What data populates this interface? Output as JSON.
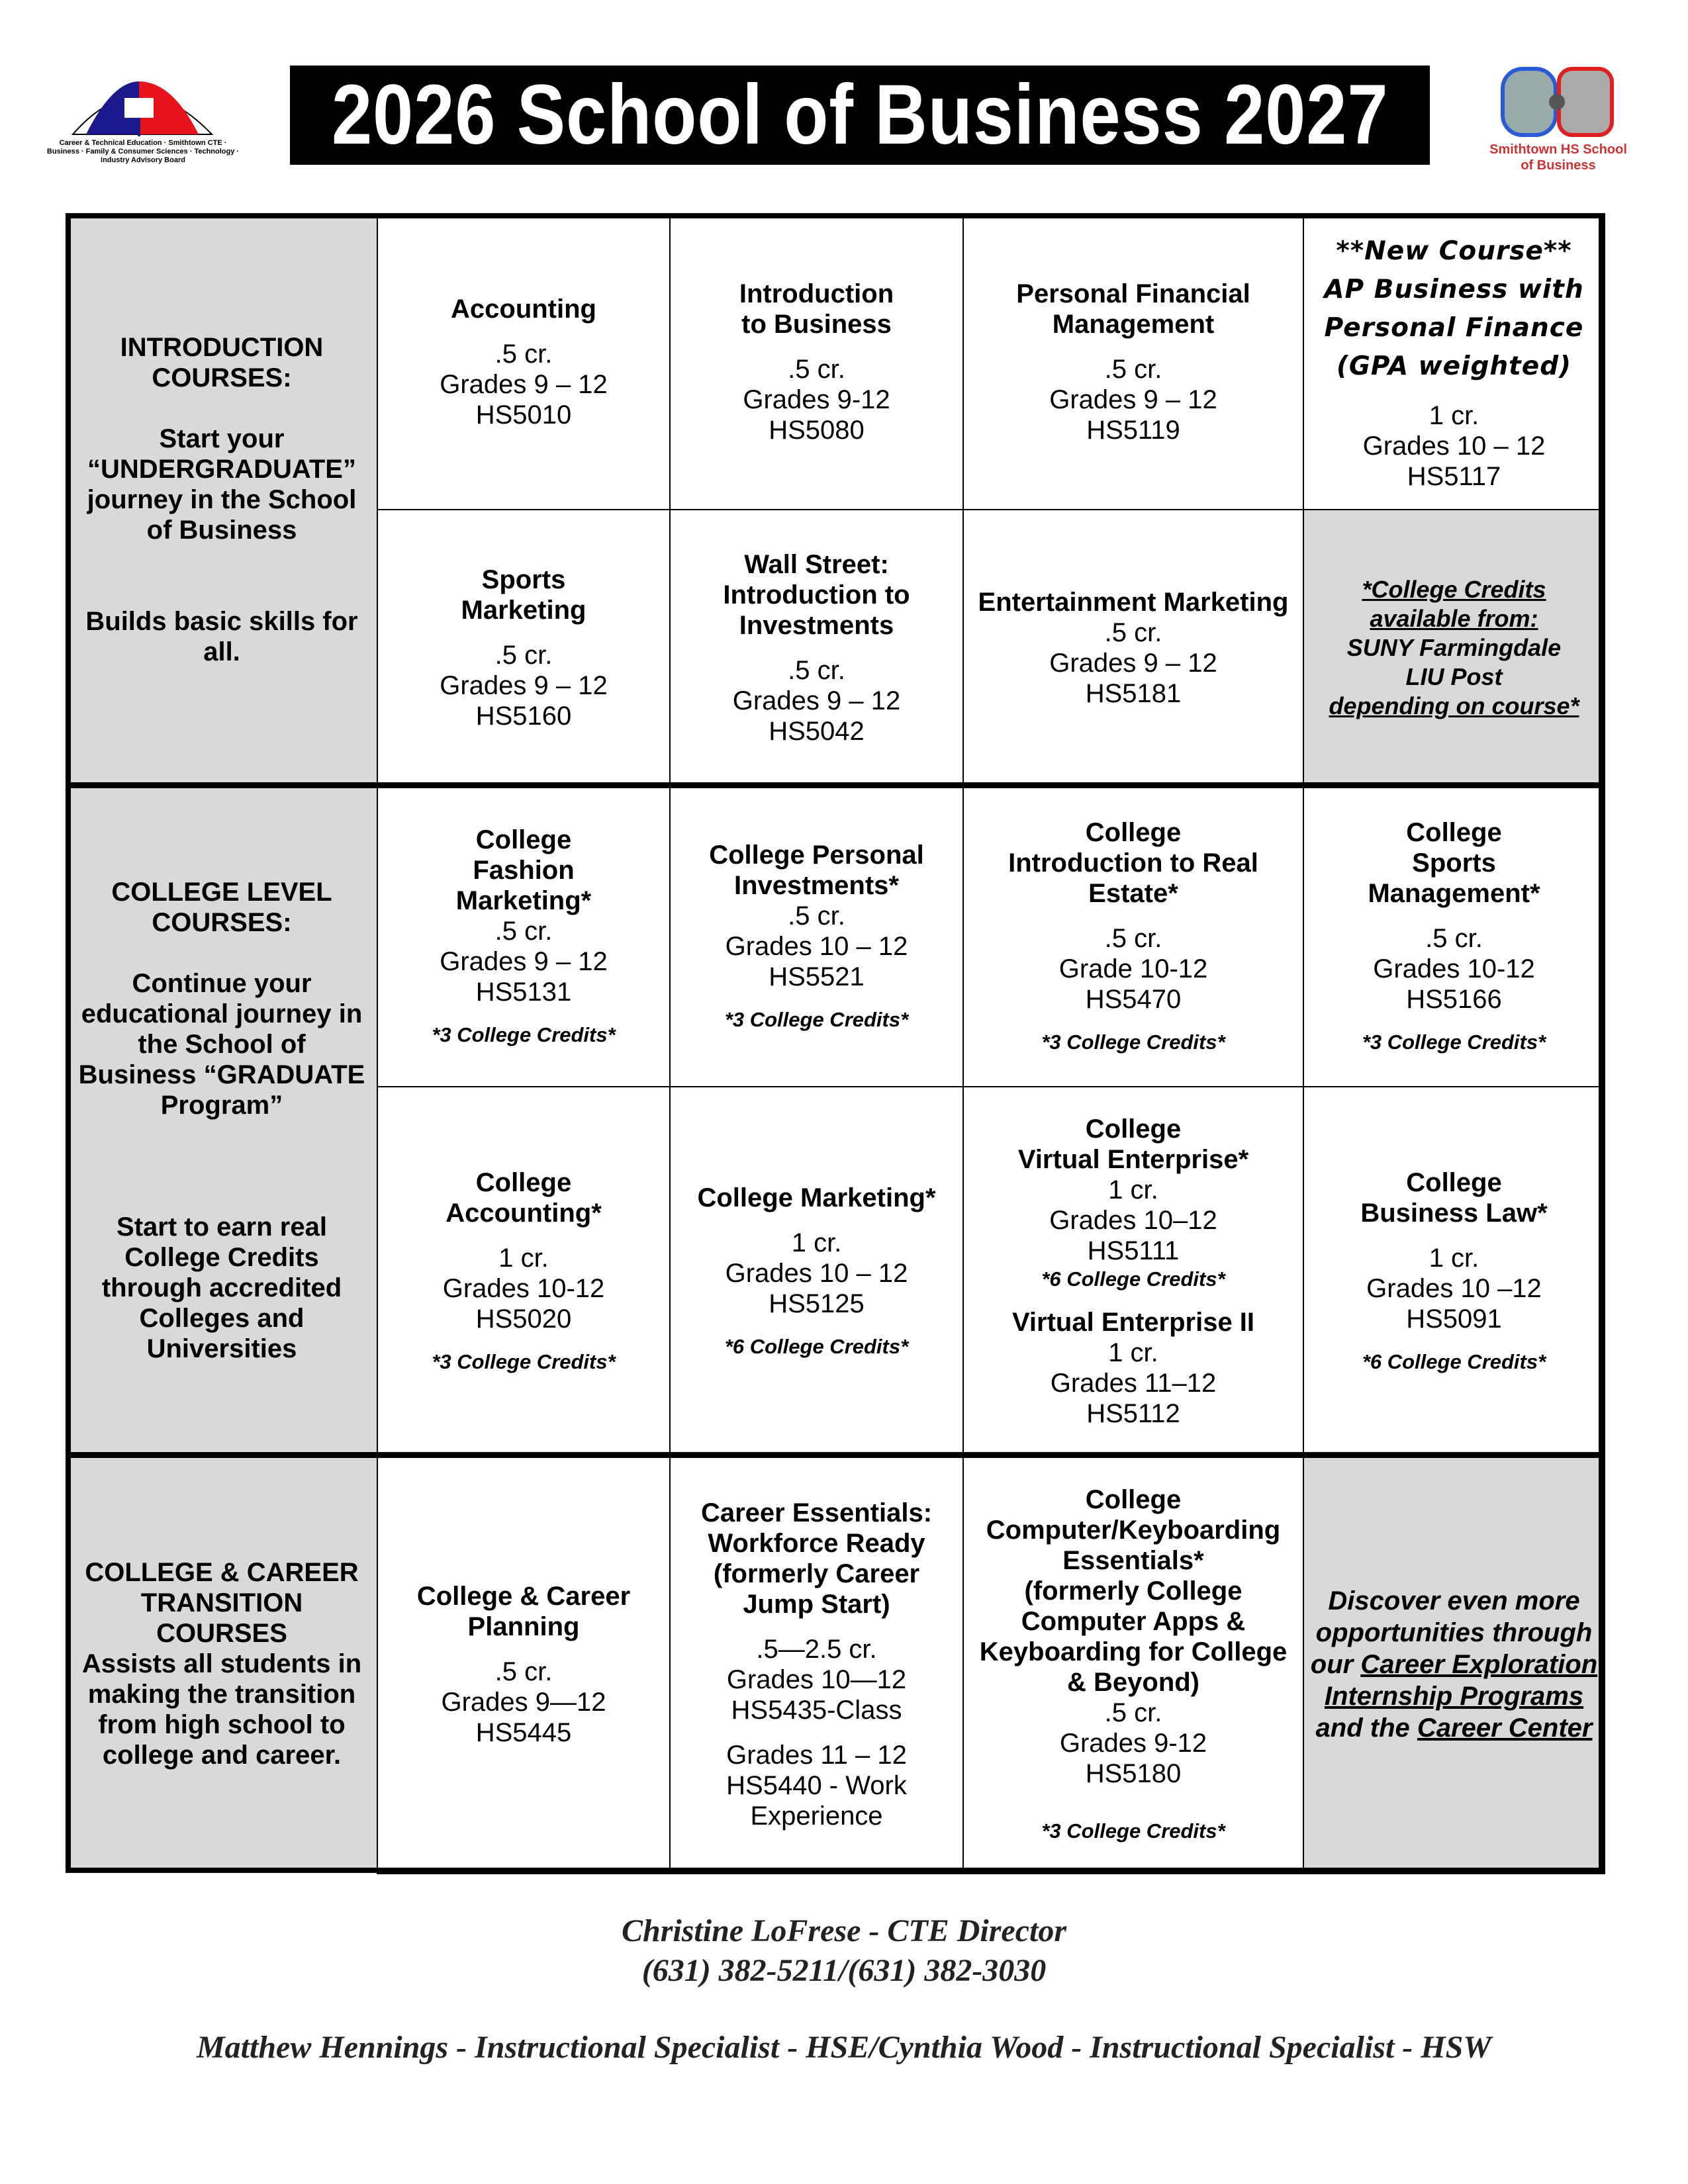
{
  "header": {
    "title": "2026 School of Business 2027",
    "left_logo_text": "Career & Technical Education · Smithtown CTE · Business · Family & Consumer Sciences · Technology · Industry Advisory Board",
    "right_logo_text": "Smithtown HS School of Business"
  },
  "sections": {
    "intro": "INTRODUCTION\nCOURSES:\n\nStart your\n“UNDERGRADUATE”\njourney in the School\nof Business\n\n\nBuilds basic skills for\nall.",
    "college": "COLLEGE LEVEL\nCOURSES:\n\nContinue your\neducational journey in\nthe School of\nBusiness “GRADUATE\nProgram”\n\n\n\nStart to earn real\nCollege Credits\nthrough accredited\nColleges and\nUniversities",
    "career": "COLLEGE & CAREER\nTRANSITION\nCOURSES\nAssists all students in\nmaking the transition\nfrom high school to\ncollege and career."
  },
  "cells": [
    {
      "blocks": [
        {
          "k": "title",
          "t": "Accounting"
        },
        {
          "k": "body",
          "t": ".5 cr.\nGrades 9 – 12\nHS5010",
          "sp": 1
        }
      ]
    },
    {
      "blocks": [
        {
          "k": "title",
          "t": "Introduction\nto Business"
        },
        {
          "k": "body",
          "t": ".5 cr.\nGrades 9-12\nHS5080",
          "sp": 1
        }
      ]
    },
    {
      "blocks": [
        {
          "k": "title",
          "t": "Personal Financial\nManagement"
        },
        {
          "k": "body",
          "t": ".5 cr.\nGrades 9 – 12\nHS5119",
          "sp": 1
        }
      ]
    },
    {
      "blocks": [
        {
          "k": "fancy",
          "t": "**New Course**\nAP Business with\nPersonal Finance\n(GPA weighted)"
        },
        {
          "k": "body",
          "t": "1 cr.\nGrades 10 – 12\nHS5117",
          "sp": 1
        }
      ]
    },
    {
      "blocks": [
        {
          "k": "title",
          "t": "Sports\nMarketing"
        },
        {
          "k": "body",
          "t": ".5 cr.\nGrades 9 – 12\nHS5160",
          "sp": 1
        }
      ]
    },
    {
      "blocks": [
        {
          "k": "title",
          "t": "Wall Street:\nIntroduction to\nInvestments"
        },
        {
          "k": "body",
          "t": ".5 cr.\nGrades 9 – 12\nHS5042",
          "sp": 1
        }
      ]
    },
    {
      "blocks": [
        {
          "k": "title",
          "t": "Entertainment Marketing"
        },
        {
          "k": "body",
          "t": ".5 cr.\nGrades 9 – 12\nHS5181"
        }
      ]
    },
    {
      "grey": true,
      "blocks": [
        {
          "k": "note u",
          "t": "*College Credits\navailable from:"
        },
        {
          "k": "note",
          "t": "SUNY Farmingdale\nLIU Post"
        },
        {
          "k": "note u",
          "t": "depending on course*"
        }
      ]
    },
    {
      "blocks": [
        {
          "k": "title",
          "t": "College\nFashion\nMarketing*"
        },
        {
          "k": "body",
          "t": ".5 cr.\nGrades 9 – 12\nHS5131"
        },
        {
          "k": "credit",
          "t": "*3 College Credits*",
          "sp": 1
        }
      ]
    },
    {
      "blocks": [
        {
          "k": "title",
          "t": "College Personal\nInvestments*"
        },
        {
          "k": "body",
          "t": ".5 cr.\nGrades 10 – 12\nHS5521"
        },
        {
          "k": "credit",
          "t": "*3 College Credits*",
          "sp": 1
        }
      ]
    },
    {
      "blocks": [
        {
          "k": "title",
          "t": "College\nIntroduction to Real\nEstate*"
        },
        {
          "k": "body",
          "t": ".5 cr.\nGrade 10-12\nHS5470",
          "sp": 1
        },
        {
          "k": "credit",
          "t": "*3 College Credits*",
          "sp": 1
        }
      ]
    },
    {
      "blocks": [
        {
          "k": "title",
          "t": "College\nSports\nManagement*"
        },
        {
          "k": "body",
          "t": ".5 cr.\nGrades 10-12\nHS5166",
          "sp": 1
        },
        {
          "k": "credit",
          "t": "*3 College Credits*",
          "sp": 1
        }
      ]
    },
    {
      "blocks": [
        {
          "k": "title",
          "t": "College\nAccounting*"
        },
        {
          "k": "body",
          "t": "1 cr.\nGrades 10-12\nHS5020",
          "sp": 1
        },
        {
          "k": "credit",
          "t": "*3 College Credits*",
          "sp": 1
        }
      ]
    },
    {
      "blocks": [
        {
          "k": "title",
          "t": "College Marketing*"
        },
        {
          "k": "body",
          "t": "1 cr.\nGrades 10 – 12\nHS5125",
          "sp": 1
        },
        {
          "k": "credit",
          "t": "*6 College Credits*",
          "sp": 1
        }
      ]
    },
    {
      "blocks": [
        {
          "k": "title",
          "t": "College\nVirtual Enterprise*"
        },
        {
          "k": "body",
          "t": "1 cr.\nGrades 10–12\nHS5111"
        },
        {
          "k": "credit",
          "t": "*6 College Credits*"
        },
        {
          "k": "title",
          "t": "Virtual Enterprise II",
          "sp": 1
        },
        {
          "k": "body",
          "t": "1 cr.\nGrades 11–12\nHS5112"
        }
      ]
    },
    {
      "blocks": [
        {
          "k": "title",
          "t": "College\nBusiness Law*"
        },
        {
          "k": "body",
          "t": "1 cr.\nGrades 10 –12\nHS5091",
          "sp": 1
        },
        {
          "k": "credit",
          "t": "*6 College Credits*",
          "sp": 1
        }
      ]
    },
    {
      "blocks": [
        {
          "k": "title",
          "t": "College & Career\nPlanning"
        },
        {
          "k": "body",
          "t": ".5 cr.\nGrades 9—12\nHS5445",
          "sp": 1
        }
      ]
    },
    {
      "blocks": [
        {
          "k": "title",
          "t": "Career Essentials:\nWorkforce Ready\n(formerly Career\nJump Start)"
        },
        {
          "k": "body",
          "t": ".5—2.5 cr.\nGrades 10—12\nHS5435-Class",
          "sp": 1
        },
        {
          "k": "body",
          "t": "Grades 11 – 12\nHS5440 - Work\nExperience",
          "sp": 1
        }
      ]
    },
    {
      "blocks": [
        {
          "k": "title",
          "t": "College\nComputer/Keyboarding\nEssentials*\n(formerly College\nComputer Apps &\nKeyboarding for College\n& Beyond)"
        },
        {
          "k": "body",
          "t": ".5 cr.\nGrades 9-12\nHS5180"
        },
        {
          "k": "credit",
          "t": "*3 College Credits*",
          "sp": 2
        }
      ]
    },
    {
      "grey": true,
      "rich": [
        {
          "t": "Discover even more opportunities through our "
        },
        {
          "t": "Career Exploration",
          "u": true
        },
        {
          "t": " "
        },
        {
          "t": "Internship Programs",
          "u": true
        },
        {
          "t": " and the "
        },
        {
          "t": "Career Center",
          "u": true
        }
      ]
    }
  ],
  "footer": {
    "director": "Christine LoFrese - CTE Director",
    "phones": "(631) 382-5211/(631) 382-3030",
    "specialists": "Matthew Hennings - Instructional Specialist - HSE/Cynthia Wood - Instructional Specialist - HSW"
  }
}
